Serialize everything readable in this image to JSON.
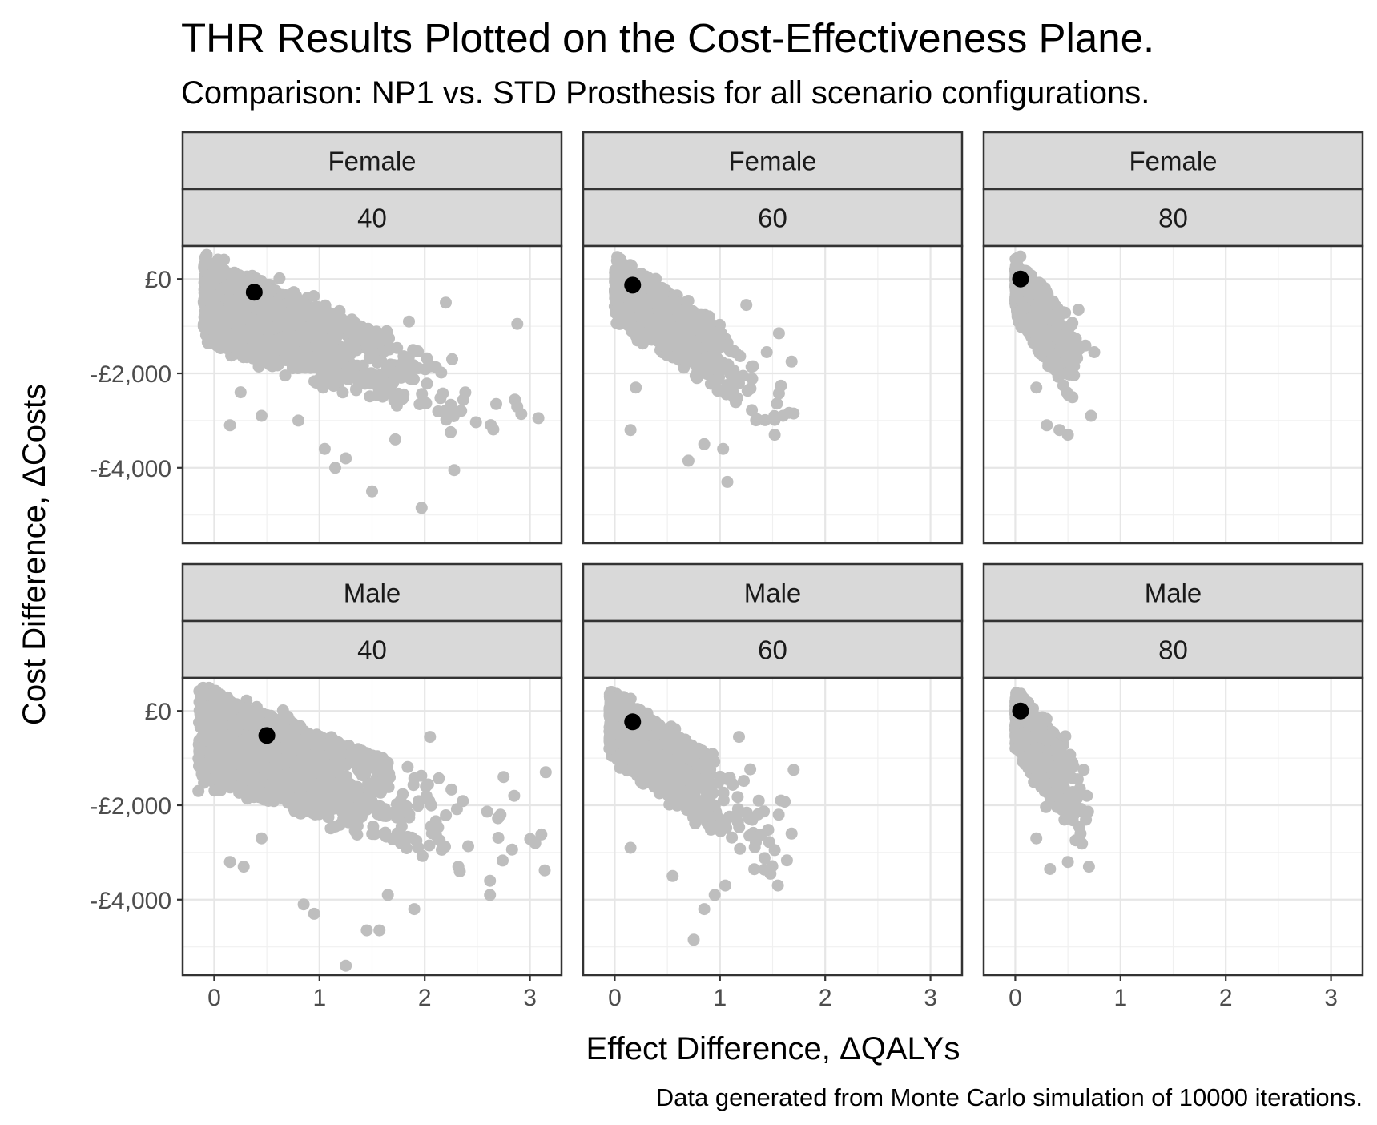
{
  "chart_data": {
    "type": "scatter",
    "title": "THR Results Plotted on the Cost-Effectiveness Plane.",
    "subtitle": "Comparison: NP1 vs. STD Prosthesis for all scenario configurations.",
    "xlabel": "Effect Difference,  ΔQALYs",
    "ylabel": "Cost Difference,  ΔCosts",
    "caption": "Data generated from Monte Carlo simulation of 10000 iterations.",
    "xlim": [
      -0.3,
      3.3
    ],
    "ylim": [
      -5600,
      700
    ],
    "x_ticks": [
      0,
      1,
      2,
      3
    ],
    "x_tick_labels": [
      "0",
      "1",
      "2",
      "3"
    ],
    "y_ticks": [
      0,
      -2000,
      -4000
    ],
    "y_tick_labels": [
      "£0",
      "-£2,000",
      "-£4,000"
    ],
    "grid": true,
    "legend": "none",
    "point_color": "#bebebe",
    "mean_color": "#000000",
    "panels": [
      {
        "sex": "Female",
        "age": "40",
        "mean": {
          "x": 0.38,
          "y": -280
        },
        "cloud": {
          "x_range": [
            -0.1,
            3.1
          ],
          "corner_y": 400,
          "slope": -920,
          "lower_base": -1200,
          "lower_slope": -780,
          "min_y": -4800
        },
        "outliers": [
          [
            -0.1,
            -1000
          ],
          [
            0.15,
            -3100
          ],
          [
            0.25,
            -2400
          ],
          [
            0.45,
            -2900
          ],
          [
            0.8,
            -3000
          ],
          [
            1.05,
            -3600
          ],
          [
            1.15,
            -4000
          ],
          [
            1.25,
            -3800
          ],
          [
            1.5,
            -4500
          ],
          [
            1.72,
            -3400
          ],
          [
            1.97,
            -4850
          ],
          [
            2.28,
            -4050
          ],
          [
            2.68,
            -2650
          ],
          [
            3.08,
            -2950
          ],
          [
            2.88,
            -950
          ],
          [
            2.2,
            -500
          ],
          [
            1.85,
            -900
          ]
        ]
      },
      {
        "sex": "Female",
        "age": "60",
        "mean": {
          "x": 0.17,
          "y": -130
        },
        "cloud": {
          "x_range": [
            0.0,
            1.7
          ],
          "corner_y": 300,
          "slope": -1300,
          "lower_base": -600,
          "lower_slope": -1800,
          "min_y": -4300
        },
        "outliers": [
          [
            0.15,
            -3200
          ],
          [
            0.2,
            -2300
          ],
          [
            0.7,
            -3850
          ],
          [
            0.85,
            -3500
          ],
          [
            1.07,
            -4300
          ],
          [
            1.03,
            -3600
          ],
          [
            1.6,
            -2900
          ],
          [
            1.7,
            -2850
          ],
          [
            1.68,
            -1750
          ],
          [
            1.56,
            -1150
          ],
          [
            1.25,
            -550
          ],
          [
            1.52,
            -3300
          ]
        ]
      },
      {
        "sex": "Female",
        "age": "80",
        "mean": {
          "x": 0.05,
          "y": 0
        },
        "cloud": {
          "x_range": [
            0.0,
            0.75
          ],
          "corner_y": 250,
          "slope": -2100,
          "lower_base": -500,
          "lower_slope": -3800,
          "min_y": -3300
        },
        "outliers": [
          [
            0.2,
            -2300
          ],
          [
            0.3,
            -3100
          ],
          [
            0.42,
            -3200
          ],
          [
            0.5,
            -3300
          ],
          [
            0.72,
            -2900
          ],
          [
            0.75,
            -1550
          ],
          [
            0.6,
            -650
          ]
        ]
      },
      {
        "sex": "Male",
        "age": "40",
        "mean": {
          "x": 0.5,
          "y": -520
        },
        "cloud": {
          "x_range": [
            -0.15,
            3.15
          ],
          "corner_y": 450,
          "slope": -820,
          "lower_base": -1300,
          "lower_slope": -800,
          "min_y": -5400
        },
        "outliers": [
          [
            -0.15,
            -1700
          ],
          [
            0.15,
            -3200
          ],
          [
            0.28,
            -3300
          ],
          [
            0.45,
            -2700
          ],
          [
            0.85,
            -4100
          ],
          [
            0.95,
            -4300
          ],
          [
            1.25,
            -5400
          ],
          [
            1.45,
            -4650
          ],
          [
            1.57,
            -4650
          ],
          [
            1.65,
            -3900
          ],
          [
            1.9,
            -4200
          ],
          [
            2.32,
            -3300
          ],
          [
            2.62,
            -3600
          ],
          [
            2.62,
            -3900
          ],
          [
            2.72,
            -2200
          ],
          [
            2.85,
            -1800
          ],
          [
            3.15,
            -1300
          ],
          [
            3.05,
            -2800
          ],
          [
            2.75,
            -1400
          ],
          [
            2.05,
            -550
          ]
        ]
      },
      {
        "sex": "Male",
        "age": "60",
        "mean": {
          "x": 0.17,
          "y": -230
        },
        "cloud": {
          "x_range": [
            -0.05,
            1.7
          ],
          "corner_y": 350,
          "slope": -1350,
          "lower_base": -700,
          "lower_slope": -1900,
          "min_y": -4800
        },
        "outliers": [
          [
            -0.05,
            -800
          ],
          [
            0.15,
            -2900
          ],
          [
            0.55,
            -3500
          ],
          [
            0.75,
            -4850
          ],
          [
            0.85,
            -4200
          ],
          [
            0.95,
            -3900
          ],
          [
            1.05,
            -3700
          ],
          [
            1.52,
            -2950
          ],
          [
            1.55,
            -3700
          ],
          [
            1.68,
            -2600
          ],
          [
            1.7,
            -1250
          ],
          [
            1.58,
            -1900
          ],
          [
            1.18,
            -550
          ]
        ]
      },
      {
        "sex": "Male",
        "age": "80",
        "mean": {
          "x": 0.05,
          "y": 0
        },
        "cloud": {
          "x_range": [
            0.0,
            0.72
          ],
          "corner_y": 300,
          "slope": -2100,
          "lower_base": -600,
          "lower_slope": -3600,
          "min_y": -3400
        },
        "outliers": [
          [
            0.2,
            -2700
          ],
          [
            0.33,
            -3350
          ],
          [
            0.5,
            -3200
          ],
          [
            0.7,
            -3300
          ],
          [
            0.62,
            -2600
          ],
          [
            0.65,
            -1250
          ],
          [
            0.68,
            -1800
          ]
        ]
      }
    ]
  }
}
